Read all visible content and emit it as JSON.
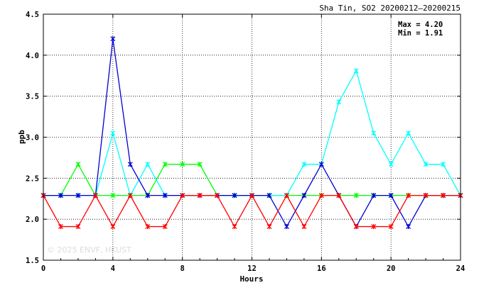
{
  "chart_data": {
    "type": "line",
    "title": "Sha Tin, SO2 20200212–20200215",
    "xlabel": "Hours",
    "ylabel": "ppb",
    "xlim": [
      0,
      24
    ],
    "ylim": [
      1.5,
      4.5
    ],
    "x_ticks": [
      0,
      4,
      8,
      12,
      16,
      20,
      24
    ],
    "x_tick_labels": [
      "0",
      "4",
      "8",
      "12",
      "16",
      "20",
      "24"
    ],
    "y_ticks": [
      1.5,
      2.0,
      2.5,
      3.0,
      3.5,
      4.0,
      4.5
    ],
    "y_tick_labels": [
      "1.5",
      "2.0",
      "2.5",
      "3.0",
      "3.5",
      "4.0",
      "4.5"
    ],
    "grid": true,
    "stats": {
      "max": "Max = 4.20",
      "min": "Min = 1.91"
    },
    "watermark": "© 2025 ENVF, HKUST",
    "x": [
      0,
      1,
      2,
      3,
      4,
      5,
      6,
      7,
      8,
      9,
      10,
      11,
      12,
      13,
      14,
      15,
      16,
      17,
      18,
      19,
      20,
      21,
      22,
      23,
      24
    ],
    "series": [
      {
        "color": "#00ff00",
        "values": [
          2.29,
          2.29,
          2.67,
          2.29,
          2.29,
          2.29,
          2.29,
          2.67,
          2.67,
          2.67,
          2.29,
          2.29,
          2.29,
          2.29,
          2.29,
          2.29,
          2.29,
          2.29,
          2.29,
          2.29,
          2.29,
          2.29,
          2.29,
          2.29,
          2.29
        ]
      },
      {
        "color": "#00ffff",
        "values": [
          2.29,
          2.29,
          2.29,
          2.29,
          3.05,
          2.29,
          2.67,
          2.29,
          2.29,
          2.29,
          2.29,
          2.29,
          2.29,
          2.29,
          2.29,
          2.67,
          2.67,
          3.43,
          3.81,
          3.05,
          2.67,
          3.05,
          2.67,
          2.67,
          2.29
        ]
      },
      {
        "color": "#0000d0",
        "values": [
          2.29,
          2.29,
          2.29,
          2.29,
          4.2,
          2.67,
          2.29,
          2.29,
          2.29,
          2.29,
          2.29,
          2.29,
          2.29,
          2.29,
          1.91,
          2.29,
          2.67,
          2.29,
          1.91,
          2.29,
          2.29,
          1.91,
          2.29,
          2.29,
          2.29
        ]
      },
      {
        "color": "#ff0000",
        "values": [
          2.29,
          1.91,
          1.91,
          2.29,
          1.91,
          2.29,
          1.91,
          1.91,
          2.29,
          2.29,
          2.29,
          1.91,
          2.29,
          1.91,
          2.29,
          1.91,
          2.29,
          2.29,
          1.91,
          1.91,
          1.91,
          2.29,
          2.29,
          2.29,
          2.29
        ]
      }
    ]
  }
}
